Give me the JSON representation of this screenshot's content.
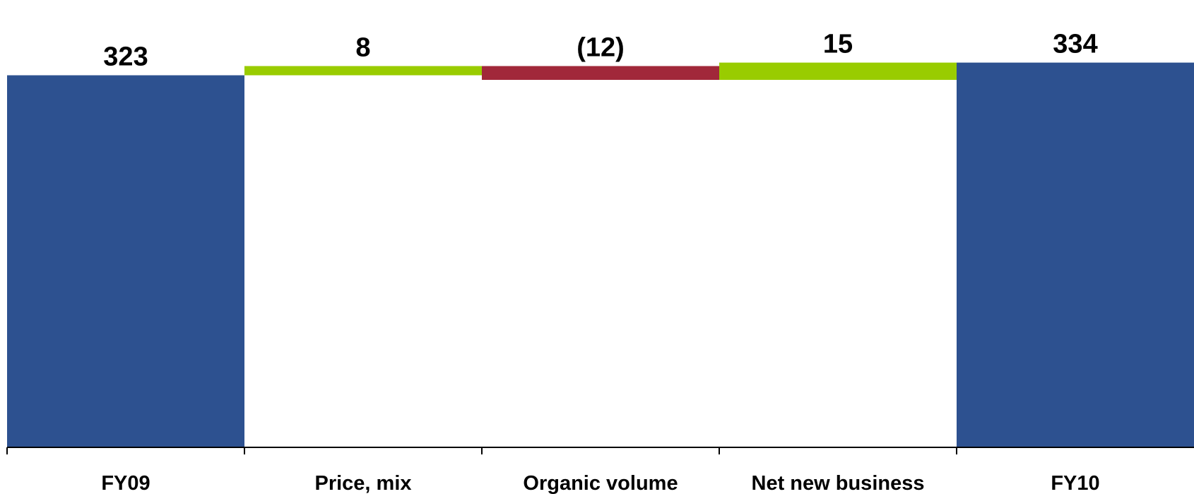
{
  "chart_data": {
    "type": "bar",
    "subtype": "waterfall",
    "title": "",
    "xlabel": "",
    "ylabel": "",
    "categories": [
      "FY09",
      "Price, mix",
      "Organic volume",
      "Net new business",
      "FY10"
    ],
    "values": [
      323,
      8,
      -12,
      15,
      334
    ],
    "value_labels": [
      "323",
      "8",
      "(12)",
      "15",
      "334"
    ],
    "bar_kinds": [
      "total",
      "delta",
      "delta",
      "delta",
      "total"
    ],
    "ylim": [
      0,
      345
    ],
    "grid": false,
    "legend": "none",
    "colors": {
      "total": "#2D5190",
      "increase": "#99CC00",
      "decrease": "#A1283A",
      "axis": "#000000"
    }
  }
}
